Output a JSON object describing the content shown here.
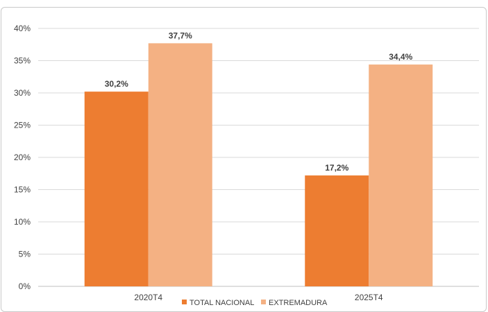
{
  "chart_data": {
    "type": "bar",
    "categories": [
      "2020T4",
      "2025T4"
    ],
    "series": [
      {
        "name": "TOTAL NACIONAL",
        "values": [
          30.2,
          17.2
        ],
        "labels": [
          "30,2%",
          "17,2%"
        ],
        "color": "#ED7D31"
      },
      {
        "name": "EXTREMADURA",
        "values": [
          37.7,
          34.4
        ],
        "labels": [
          "37,7%",
          "34,4%"
        ],
        "color": "#F4B183"
      }
    ],
    "yticks": [
      "0%",
      "5%",
      "10%",
      "15%",
      "20%",
      "25%",
      "30%",
      "35%",
      "40%"
    ],
    "ylim": [
      0,
      40
    ],
    "grid": true,
    "legend_position": "bottom"
  }
}
